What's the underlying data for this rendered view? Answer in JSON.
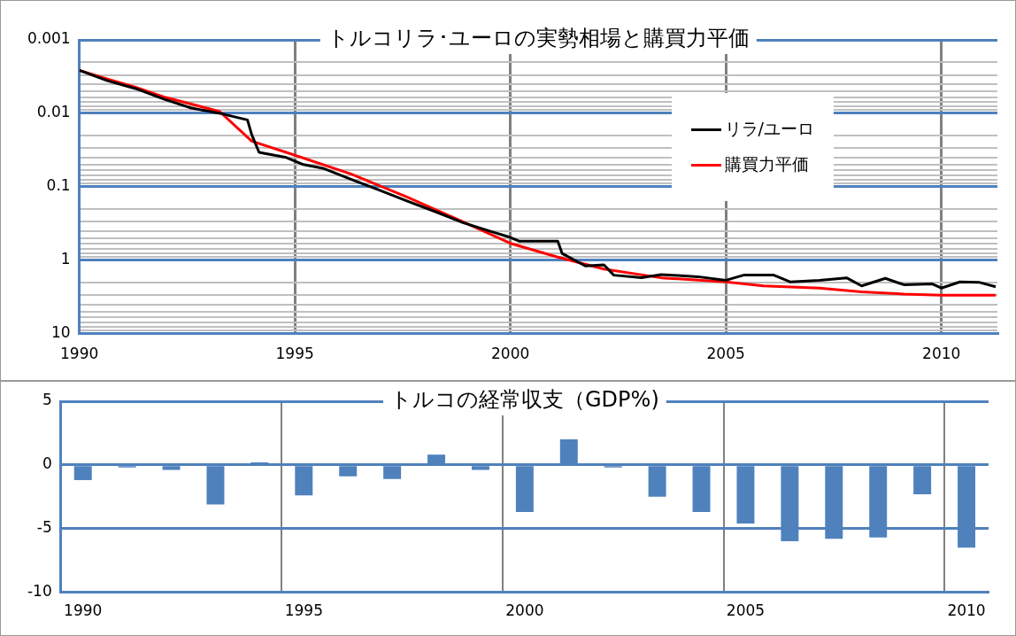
{
  "chart_data": [
    {
      "type": "line",
      "title": "トルコリラ･ユーロの実勢相場と購買力平価",
      "log": "y",
      "grid": true,
      "legend": "top right",
      "xlim": [
        1990,
        2011.3
      ],
      "xticks": [
        1990,
        1995,
        2000,
        2005,
        2010
      ],
      "ylim": [
        10,
        0.001
      ],
      "yticks": [
        0.001,
        {
          "value": 0.002,
          "label": null
        },
        {
          "value": 0.003,
          "label": null
        },
        {
          "value": 0.004,
          "label": null
        },
        {
          "value": 0.005,
          "label": null
        },
        {
          "value": 0.006,
          "label": null
        },
        {
          "value": 0.007,
          "label": null
        },
        {
          "value": 0.008,
          "label": null
        },
        {
          "value": 0.009,
          "label": null
        },
        0.01,
        {
          "value": 0.02,
          "label": null
        },
        {
          "value": 0.03,
          "label": null
        },
        {
          "value": 0.04,
          "label": null
        },
        {
          "value": 0.05,
          "label": null
        },
        {
          "value": 0.06,
          "label": null
        },
        {
          "value": 0.07,
          "label": null
        },
        {
          "value": 0.08,
          "label": null
        },
        {
          "value": 0.09,
          "label": null
        },
        0.1,
        {
          "value": 0.2,
          "label": null
        },
        {
          "value": 0.3,
          "label": null
        },
        {
          "value": 0.4,
          "label": null
        },
        {
          "value": 0.5,
          "label": null
        },
        {
          "value": 0.6,
          "label": null
        },
        {
          "value": 0.7,
          "label": null
        },
        {
          "value": 0.8,
          "label": null
        },
        {
          "value": 0.9,
          "label": null
        },
        1,
        {
          "value": 2,
          "label": null
        },
        {
          "value": 3,
          "label": null
        },
        {
          "value": 4,
          "label": null
        },
        {
          "value": 5,
          "label": null
        },
        {
          "value": 6,
          "label": null
        },
        {
          "value": 7,
          "label": null
        },
        {
          "value": 8,
          "label": null
        },
        {
          "value": 9,
          "label": null
        },
        10
      ],
      "series": [
        {
          "name": "リラ/ユーロ",
          "color": "#000000",
          "x": [
            1990,
            1990.65,
            1991.3,
            1991.96,
            1992.6,
            1993.26,
            1993.9,
            1994,
            1994.17,
            1994.8,
            1995.2,
            1995.65,
            1996.3,
            1996.96,
            1997.6,
            1998.26,
            1998.9,
            1999.57,
            2000,
            2000.2,
            2001.1,
            2001.2,
            2001.74,
            2002.17,
            2002.4,
            2003.04,
            2003.5,
            2004.35,
            2005,
            2005.43,
            2006.1,
            2006.5,
            2007.17,
            2007.8,
            2008.15,
            2008.7,
            2009.13,
            2009.78,
            2010,
            2010.43,
            2010.87,
            2011.26
          ],
          "values": [
            0.0026,
            0.0036,
            0.0046,
            0.0064,
            0.0085,
            0.01,
            0.0123,
            0.0196,
            0.034,
            0.04,
            0.05,
            0.056,
            0.079,
            0.111,
            0.156,
            0.219,
            0.309,
            0.41,
            0.49,
            0.55,
            0.55,
            0.81,
            1.2,
            1.16,
            1.6,
            1.73,
            1.57,
            1.68,
            1.88,
            1.59,
            1.59,
            1.98,
            1.88,
            1.74,
            2.24,
            1.77,
            2.16,
            2.1,
            2.4,
            1.98,
            2.0,
            2.3
          ]
        },
        {
          "name": "購買力平価",
          "color": "#ff0000",
          "x": [
            1990,
            1990.65,
            1991.3,
            1991.96,
            1992.6,
            1993.26,
            1994,
            1994.8,
            1996.3,
            1997.6,
            1998.9,
            2000,
            2001.1,
            2002.17,
            2003.5,
            2005,
            2005.87,
            2007.17,
            2008.15,
            2009.13,
            2010,
            2011.26
          ],
          "values": [
            0.0026,
            0.0034,
            0.0044,
            0.006,
            0.0075,
            0.0095,
            0.024,
            0.034,
            0.067,
            0.138,
            0.3,
            0.59,
            0.91,
            1.32,
            1.74,
            1.98,
            2.24,
            2.4,
            2.7,
            2.9,
            3.0,
            3.0
          ]
        }
      ]
    },
    {
      "type": "bar",
      "title": "トルコの経常収支（GDP%)",
      "grid": true,
      "categories": [
        "1990",
        null,
        null,
        null,
        null,
        "1995",
        null,
        null,
        null,
        null,
        "2000",
        null,
        null,
        null,
        null,
        "2005",
        null,
        null,
        null,
        null,
        "2010"
      ],
      "ylim": [
        -10,
        5
      ],
      "yticks": [
        -10,
        -5,
        0,
        5
      ],
      "color": "#4f81bd",
      "values": [
        -1.2,
        -0.2,
        -0.4,
        -3.1,
        0.2,
        -2.4,
        -0.9,
        -1.1,
        0.8,
        -0.4,
        -3.7,
        2.0,
        -0.2,
        -2.5,
        -3.7,
        -4.6,
        -6.0,
        -5.8,
        -5.7,
        -2.3,
        -6.5
      ]
    }
  ]
}
